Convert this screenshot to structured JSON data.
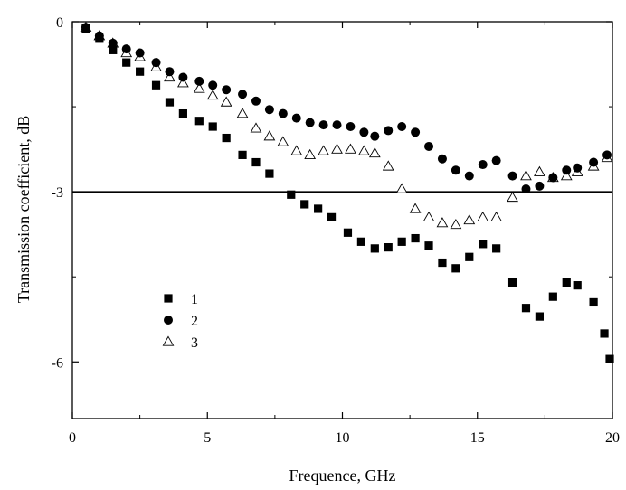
{
  "chart_data": {
    "type": "scatter",
    "title": "",
    "xlabel": "Frequence, GHz",
    "ylabel": "Transmission coefficient, dB",
    "xlim": [
      0,
      20
    ],
    "ylim": [
      -7,
      0
    ],
    "xticks": [
      0,
      5,
      10,
      15,
      20
    ],
    "xtick_labels": [
      "0",
      "5",
      "10",
      "15",
      "20"
    ],
    "yticks": [
      0,
      -3,
      -6
    ],
    "ytick_labels": [
      "0",
      "-3",
      "-6"
    ],
    "grid": false,
    "legend_position": "lower-left",
    "reference_line": {
      "y": -3
    },
    "series": [
      {
        "name": "1",
        "marker": "filled-square",
        "x": [
          0.5,
          1.0,
          1.5,
          2.0,
          2.5,
          3.1,
          3.6,
          4.1,
          4.7,
          5.2,
          5.7,
          6.3,
          6.8,
          7.3,
          8.1,
          8.6,
          9.1,
          9.6,
          10.2,
          10.7,
          11.2,
          11.7,
          12.2,
          12.7,
          13.2,
          13.7,
          14.2,
          14.7,
          15.2,
          15.7,
          16.3,
          16.8,
          17.3,
          17.8,
          18.3,
          18.7,
          19.3,
          19.7,
          19.9
        ],
        "y": [
          -0.12,
          -0.3,
          -0.5,
          -0.72,
          -0.88,
          -1.12,
          -1.42,
          -1.62,
          -1.75,
          -1.85,
          -2.05,
          -2.35,
          -2.48,
          -2.68,
          -3.05,
          -3.22,
          -3.3,
          -3.45,
          -3.72,
          -3.88,
          -4.0,
          -3.98,
          -3.88,
          -3.82,
          -3.95,
          -4.25,
          -4.35,
          -4.15,
          -3.92,
          -4.0,
          -4.6,
          -5.05,
          -5.2,
          -4.85,
          -4.6,
          -4.65,
          -4.95,
          -5.5,
          -5.95
        ]
      },
      {
        "name": "2",
        "marker": "filled-circle",
        "x": [
          0.5,
          1.0,
          1.5,
          2.0,
          2.5,
          3.1,
          3.6,
          4.1,
          4.7,
          5.2,
          5.7,
          6.3,
          6.8,
          7.3,
          7.8,
          8.3,
          8.8,
          9.3,
          9.8,
          10.3,
          10.8,
          11.2,
          11.7,
          12.2,
          12.7,
          13.2,
          13.7,
          14.2,
          14.7,
          15.2,
          15.7,
          16.3,
          16.8,
          17.3,
          17.8,
          18.3,
          18.7,
          19.3,
          19.8
        ],
        "y": [
          -0.1,
          -0.25,
          -0.38,
          -0.48,
          -0.55,
          -0.72,
          -0.88,
          -0.98,
          -1.05,
          -1.12,
          -1.2,
          -1.28,
          -1.4,
          -1.55,
          -1.62,
          -1.7,
          -1.78,
          -1.82,
          -1.82,
          -1.85,
          -1.95,
          -2.02,
          -1.92,
          -1.85,
          -1.95,
          -2.2,
          -2.42,
          -2.62,
          -2.72,
          -2.52,
          -2.45,
          -2.72,
          -2.95,
          -2.9,
          -2.75,
          -2.62,
          -2.58,
          -2.48,
          -2.35
        ]
      },
      {
        "name": "3",
        "marker": "open-triangle",
        "x": [
          0.5,
          1.0,
          1.5,
          2.0,
          2.5,
          3.1,
          3.6,
          4.1,
          4.7,
          5.2,
          5.7,
          6.3,
          6.8,
          7.3,
          7.8,
          8.3,
          8.8,
          9.3,
          9.8,
          10.3,
          10.8,
          11.2,
          11.7,
          12.2,
          12.7,
          13.2,
          13.7,
          14.2,
          14.7,
          15.2,
          15.7,
          16.3,
          16.8,
          17.3,
          17.8,
          18.3,
          18.7,
          19.3,
          19.8
        ],
        "y": [
          -0.1,
          -0.25,
          -0.38,
          -0.55,
          -0.62,
          -0.8,
          -0.98,
          -1.08,
          -1.18,
          -1.3,
          -1.42,
          -1.62,
          -1.88,
          -2.02,
          -2.12,
          -2.28,
          -2.35,
          -2.28,
          -2.25,
          -2.25,
          -2.28,
          -2.32,
          -2.55,
          -2.95,
          -3.3,
          -3.45,
          -3.55,
          -3.58,
          -3.5,
          -3.45,
          -3.45,
          -3.1,
          -2.72,
          -2.65,
          -2.75,
          -2.72,
          -2.65,
          -2.55,
          -2.4
        ]
      }
    ]
  }
}
